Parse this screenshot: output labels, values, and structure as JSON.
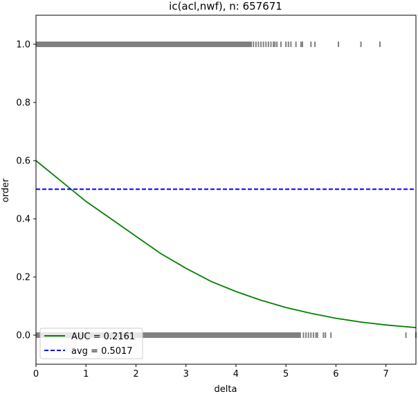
{
  "chart_data": {
    "type": "scatter",
    "title": "ic(acl,nwf), n: 657671",
    "xlabel": "delta",
    "ylabel": "order",
    "xlim": [
      0,
      7.6
    ],
    "ylim": [
      -0.1,
      1.1
    ],
    "xticks": [
      0,
      1,
      2,
      3,
      4,
      5,
      6,
      7
    ],
    "yticks": [
      0.0,
      0.2,
      0.4,
      0.6,
      0.8,
      1.0
    ],
    "xtick_labels": [
      "0",
      "1",
      "2",
      "3",
      "4",
      "5",
      "6",
      "7"
    ],
    "ytick_labels": [
      "0.0",
      "0.2",
      "0.4",
      "0.6",
      "0.8",
      "1.0"
    ],
    "grid": false,
    "legend_position": "lower-left",
    "series": [
      {
        "name": "AUC = 0.2161",
        "kind": "line",
        "color": "#008000",
        "x": [
          0,
          0.5,
          1.0,
          1.5,
          2.0,
          2.5,
          3.0,
          3.5,
          4.0,
          4.5,
          5.0,
          5.5,
          6.0,
          6.5,
          7.0,
          7.6
        ],
        "y": [
          0.6,
          0.53,
          0.46,
          0.4,
          0.34,
          0.28,
          0.23,
          0.185,
          0.15,
          0.12,
          0.095,
          0.075,
          0.058,
          0.045,
          0.035,
          0.026
        ]
      },
      {
        "name": "avg = 0.5017",
        "kind": "hline",
        "color": "#0000ff",
        "style": "dashed",
        "y": 0.5017
      }
    ],
    "points": {
      "color": "#808080",
      "y1_solid_range": [
        0,
        4.32
      ],
      "y1_x": [
        4.35,
        4.4,
        4.45,
        4.5,
        4.55,
        4.6,
        4.65,
        4.7,
        4.75,
        4.78,
        4.82,
        4.9,
        5.0,
        5.05,
        5.1,
        5.2,
        5.3,
        5.33,
        5.5,
        5.58,
        6.05,
        6.5,
        6.88
      ],
      "y0_solid_range": [
        0,
        5.3
      ],
      "y0_x": [
        5.35,
        5.4,
        5.45,
        5.5,
        5.55,
        5.6,
        5.63,
        5.75,
        5.79,
        5.9,
        7.4,
        7.6
      ]
    }
  }
}
